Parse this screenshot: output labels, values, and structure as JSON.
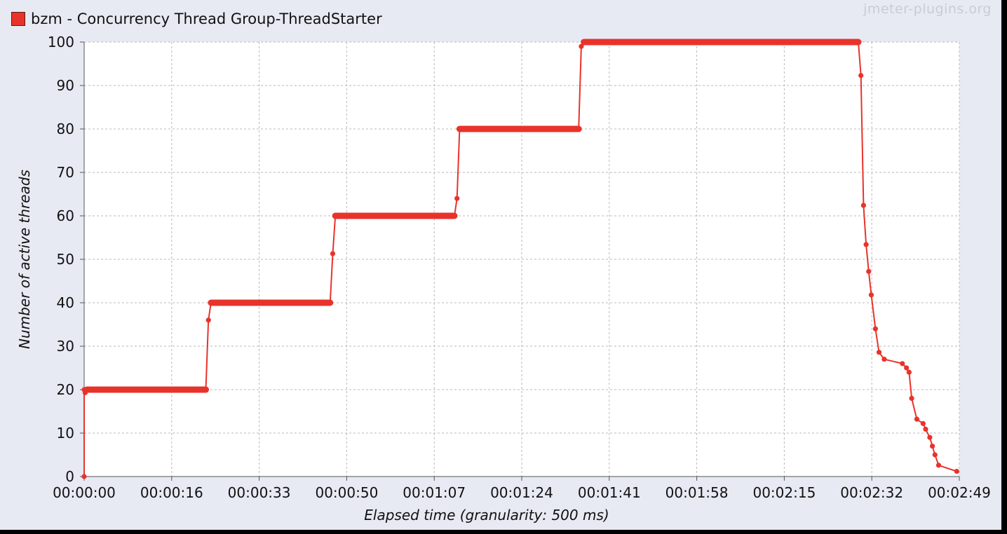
{
  "legend": {
    "label": "bzm - Concurrency Thread Group-ThreadStarter",
    "color": "#e8332b"
  },
  "watermark": "jmeter-plugins.org",
  "chart_data": {
    "type": "line",
    "xlabel": "Elapsed time (granularity: 500 ms)",
    "ylabel": "Number of active threads",
    "ylim": [
      0,
      100
    ],
    "xlim": [
      0,
      169
    ],
    "x_unit": "seconds",
    "grid": true,
    "legend_position": "top-left",
    "yticks": [
      0,
      10,
      20,
      30,
      40,
      50,
      60,
      70,
      80,
      90,
      100
    ],
    "xticks": [
      {
        "value": 0,
        "label": "00:00:00"
      },
      {
        "value": 16.9,
        "label": "00:00:16"
      },
      {
        "value": 33.8,
        "label": "00:00:33"
      },
      {
        "value": 50.7,
        "label": "00:00:50"
      },
      {
        "value": 67.6,
        "label": "00:01:07"
      },
      {
        "value": 84.5,
        "label": "00:01:24"
      },
      {
        "value": 101.4,
        "label": "00:01:41"
      },
      {
        "value": 118.3,
        "label": "00:01:58"
      },
      {
        "value": 135.2,
        "label": "00:02:15"
      },
      {
        "value": 152.1,
        "label": "00:02:32"
      },
      {
        "value": 169,
        "label": "00:02:49"
      }
    ],
    "series": [
      {
        "name": "bzm - Concurrency Thread Group-ThreadStarter",
        "color": "#e8332b",
        "segments": [
          {
            "x_start": 0.5,
            "x_end": 23.5,
            "y": 20
          },
          {
            "x_start": 24.5,
            "x_end": 47.5,
            "y": 40
          },
          {
            "x_start": 48.5,
            "x_end": 71.5,
            "y": 60
          },
          {
            "x_start": 72.5,
            "x_end": 95.5,
            "y": 80
          },
          {
            "x_start": 96.5,
            "x_end": 149.5,
            "y": 100
          }
        ],
        "points": [
          {
            "x": 0,
            "y": 0
          },
          {
            "x": 0,
            "y": 20
          },
          {
            "x": 0.2,
            "y": 19.3
          },
          {
            "x": 0.5,
            "y": 20
          },
          {
            "x": 23.5,
            "y": 20
          },
          {
            "x": 24,
            "y": 36
          },
          {
            "x": 24.5,
            "y": 40
          },
          {
            "x": 47.5,
            "y": 40
          },
          {
            "x": 48,
            "y": 51.3
          },
          {
            "x": 48.5,
            "y": 60
          },
          {
            "x": 71.5,
            "y": 60
          },
          {
            "x": 72,
            "y": 64
          },
          {
            "x": 72.5,
            "y": 80
          },
          {
            "x": 95.5,
            "y": 80
          },
          {
            "x": 96,
            "y": 99
          },
          {
            "x": 96.5,
            "y": 100
          },
          {
            "x": 149.5,
            "y": 100
          },
          {
            "x": 150,
            "y": 92.3
          },
          {
            "x": 150.5,
            "y": 62.4
          },
          {
            "x": 151,
            "y": 53.4
          },
          {
            "x": 151.5,
            "y": 47.2
          },
          {
            "x": 152,
            "y": 41.8
          },
          {
            "x": 152.8,
            "y": 34
          },
          {
            "x": 153.5,
            "y": 28.6
          },
          {
            "x": 154.5,
            "y": 27
          },
          {
            "x": 158,
            "y": 26
          },
          {
            "x": 158.8,
            "y": 25
          },
          {
            "x": 159.3,
            "y": 24
          },
          {
            "x": 159.8,
            "y": 18
          },
          {
            "x": 160.8,
            "y": 13.2
          },
          {
            "x": 162,
            "y": 12.2
          },
          {
            "x": 162.5,
            "y": 10.9
          },
          {
            "x": 163.3,
            "y": 9
          },
          {
            "x": 163.8,
            "y": 7
          },
          {
            "x": 164.3,
            "y": 5
          },
          {
            "x": 165,
            "y": 2.6
          },
          {
            "x": 168.5,
            "y": 1.2
          }
        ]
      }
    ]
  }
}
